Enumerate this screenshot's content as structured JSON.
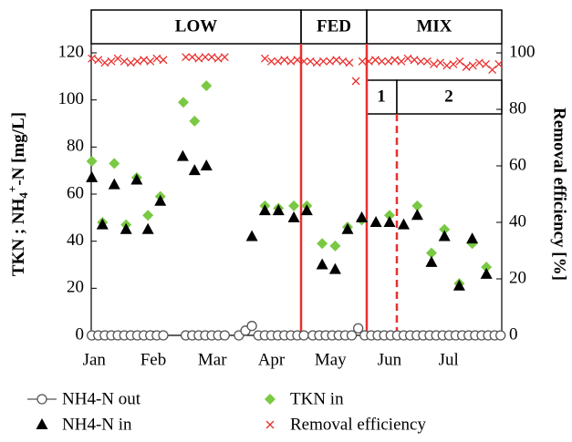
{
  "chart_data": {
    "type": "scatter",
    "ylabel_parts": [
      "TKN ; NH",
      "4",
      "+",
      "-N [mg/L]"
    ],
    "y2label": "Removal efficiency [%]",
    "phases": [
      "LOW",
      "FED",
      "MIX"
    ],
    "subphases": [
      "1",
      "2"
    ],
    "xlim": [
      -0.05,
      6.9
    ],
    "xticks": [
      {
        "value": 0,
        "label": "Jan"
      },
      {
        "value": 1,
        "label": "Feb"
      },
      {
        "value": 2,
        "label": "Mar"
      },
      {
        "value": 3,
        "label": "Apr"
      },
      {
        "value": 4,
        "label": "May"
      },
      {
        "value": 5,
        "label": "Jun"
      },
      {
        "value": 6,
        "label": "Jul"
      }
    ],
    "ylim": [
      0,
      120
    ],
    "yticks": [
      0,
      20,
      40,
      60,
      80,
      100,
      120
    ],
    "y2lim": [
      0,
      100
    ],
    "y2ticks": [
      0,
      20,
      40,
      60,
      80,
      100
    ],
    "series": [
      {
        "name": "NH4-N out",
        "marker": "circle",
        "color": "#555555",
        "x": [
          -0.04,
          0.07,
          0.18,
          0.29,
          0.4,
          0.51,
          0.62,
          0.73,
          0.84,
          0.95,
          1.06,
          1.17,
          1.55,
          1.66,
          1.77,
          1.88,
          1.99,
          2.1,
          2.21,
          2.45,
          2.56,
          2.67,
          2.78,
          2.89,
          3.0,
          3.11,
          3.22,
          3.33,
          3.44,
          3.55,
          3.7,
          3.81,
          3.92,
          4.03,
          4.14,
          4.25,
          4.36,
          4.47,
          4.58,
          4.69,
          4.8,
          4.91,
          5.02,
          5.13,
          5.24,
          5.35,
          5.46,
          5.57,
          5.68,
          5.79,
          5.9,
          6.01,
          6.12,
          6.23,
          6.34,
          6.45,
          6.56,
          6.67,
          6.78,
          6.88
        ],
        "values": [
          0,
          0,
          0,
          0,
          0,
          0,
          0,
          0,
          0,
          0,
          0,
          0,
          0,
          0,
          0,
          0,
          0,
          0,
          0,
          0,
          2,
          4,
          0,
          0,
          0,
          0,
          0,
          0,
          0,
          0,
          0,
          0,
          0,
          0,
          0,
          0,
          0,
          3,
          0,
          0,
          0,
          0,
          0,
          0,
          0,
          0,
          0,
          0,
          0,
          0,
          0,
          0,
          0,
          0,
          0,
          0,
          0,
          0,
          0,
          0
        ]
      },
      {
        "name": "TKN in",
        "marker": "diamond",
        "color": "#7ac943",
        "x": [
          -0.04,
          0.14,
          0.34,
          0.54,
          0.72,
          0.91,
          1.12,
          1.51,
          1.7,
          1.9,
          2.89,
          3.12,
          3.38,
          3.6,
          3.86,
          4.08,
          4.29,
          4.53,
          5.0,
          5.47,
          5.71,
          5.93,
          6.18,
          6.4,
          6.64
        ],
        "values": [
          74,
          48,
          73,
          47,
          67,
          51,
          59,
          99,
          91,
          106,
          55,
          54,
          55,
          55,
          39,
          38,
          46,
          49,
          51,
          55,
          35,
          45,
          22,
          39,
          29
        ]
      },
      {
        "name": "NH4-N in",
        "marker": "triangle",
        "color": "#000000",
        "x": [
          -0.04,
          0.14,
          0.34,
          0.54,
          0.72,
          0.91,
          1.12,
          1.5,
          1.7,
          1.9,
          2.67,
          2.89,
          3.12,
          3.38,
          3.6,
          3.86,
          4.08,
          4.29,
          4.53,
          4.77,
          5.0,
          5.24,
          5.47,
          5.71,
          5.93,
          6.18,
          6.4,
          6.64
        ],
        "values": [
          67,
          47,
          64,
          45,
          66,
          45,
          57,
          76,
          70,
          72,
          42,
          53,
          53,
          50,
          53,
          30,
          28,
          45,
          50,
          48,
          48,
          47,
          51,
          31,
          42,
          21,
          41,
          26
        ]
      },
      {
        "name": "Removal efficiency",
        "marker": "x",
        "color": "#e8302e",
        "axis": "y2",
        "x": [
          -0.04,
          0.07,
          0.18,
          0.29,
          0.4,
          0.51,
          0.62,
          0.73,
          0.84,
          0.95,
          1.06,
          1.17,
          1.55,
          1.66,
          1.77,
          1.88,
          1.99,
          2.1,
          2.21,
          2.89,
          3.0,
          3.11,
          3.22,
          3.33,
          3.44,
          3.55,
          3.66,
          3.77,
          3.88,
          3.99,
          4.1,
          4.21,
          4.32,
          4.43,
          4.54,
          4.65,
          4.76,
          4.87,
          4.98,
          5.09,
          5.2,
          5.31,
          5.42,
          5.53,
          5.64,
          5.75,
          5.86,
          5.97,
          6.08,
          6.19,
          6.3,
          6.41,
          6.52,
          6.63,
          6.74,
          6.85
        ],
        "values": [
          98,
          97.5,
          96.5,
          97,
          98,
          97,
          96.5,
          97,
          97.5,
          97,
          98,
          97.5,
          98.5,
          98.5,
          98,
          98.5,
          98.5,
          98,
          98.5,
          98,
          97,
          97,
          97.5,
          97,
          97.5,
          97,
          97,
          96.5,
          97,
          97,
          97.5,
          97,
          96.5,
          90,
          97,
          97,
          97.5,
          97,
          97,
          97.5,
          97,
          98,
          97.5,
          97,
          97,
          96,
          96.5,
          95.5,
          96,
          97,
          95,
          95.5,
          96.5,
          96,
          94,
          96
        ]
      }
    ]
  }
}
